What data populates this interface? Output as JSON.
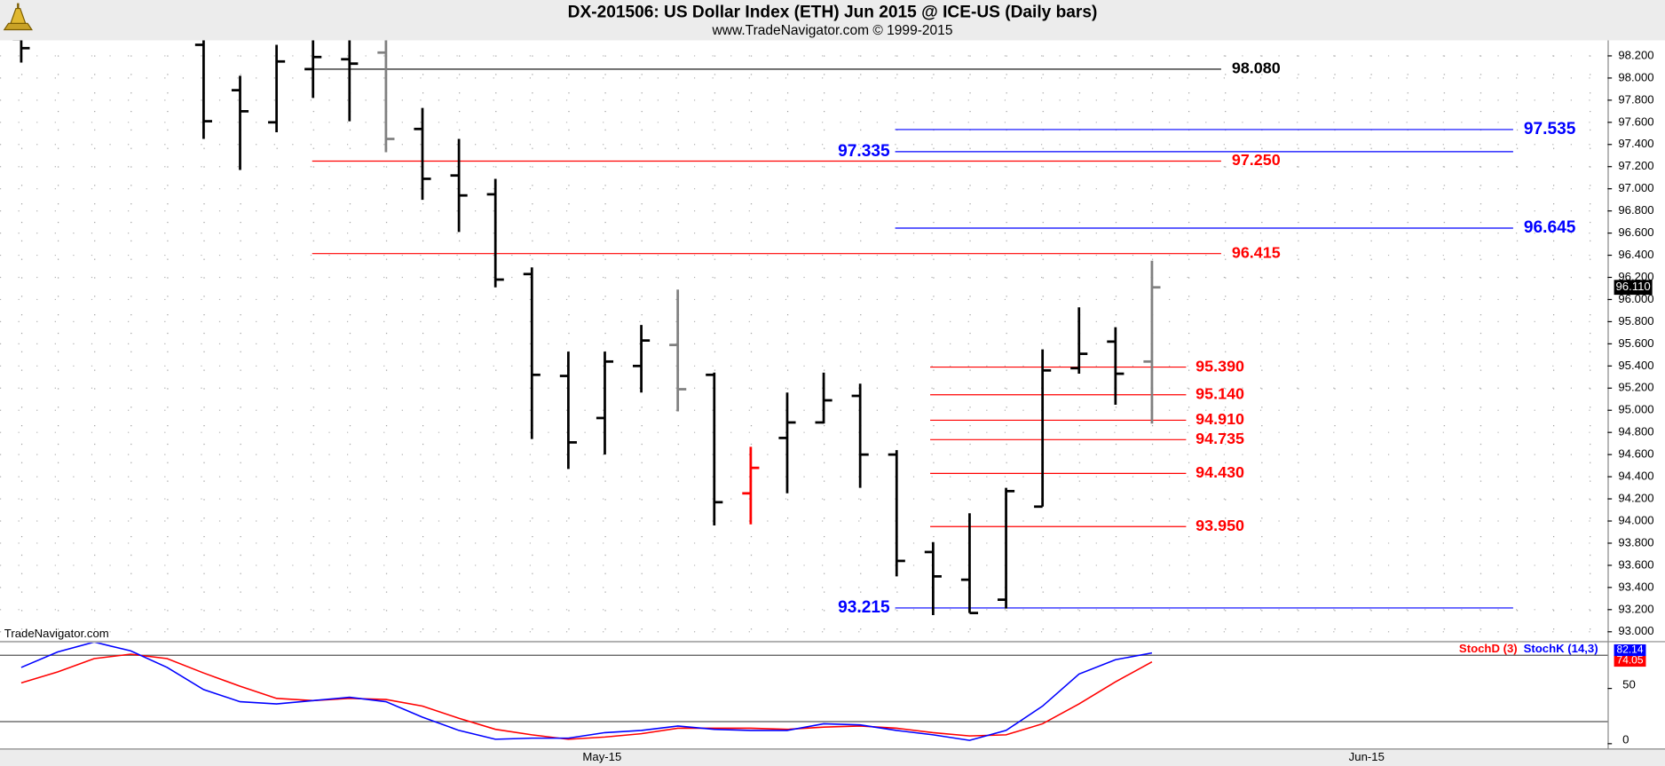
{
  "chart_data": [
    {
      "type": "ohlc",
      "title": "DX-201506:  US Dollar Index (ETH) Jun 2015 @ ICE-US  (Daily bars)",
      "subtitle": "www.TradeNavigator.com © 1999-2015",
      "annotation": "TradeNavigator.com",
      "open": [
        98.35,
        null,
        null,
        null,
        null,
        98.3,
        97.89,
        97.6,
        98.08,
        98.17,
        98.23,
        97.54,
        97.12,
        96.95,
        96.23,
        95.31,
        94.93,
        95.4,
        95.59,
        95.32,
        94.25,
        94.75,
        94.89,
        95.13,
        94.6,
        93.72,
        93.47,
        93.29,
        94.13,
        95.38,
        95.62,
        95.44
      ],
      "high": [
        98.4,
        null,
        null,
        null,
        null,
        98.36,
        98.02,
        98.3,
        98.34,
        98.34,
        98.34,
        97.73,
        97.45,
        97.09,
        96.29,
        95.53,
        95.53,
        95.77,
        96.09,
        95.34,
        94.67,
        95.16,
        95.34,
        95.24,
        94.64,
        93.81,
        94.07,
        94.3,
        95.55,
        95.93,
        95.75,
        96.35
      ],
      "low": [
        98.14,
        null,
        null,
        null,
        null,
        97.45,
        97.17,
        97.51,
        97.82,
        97.61,
        97.33,
        96.9,
        96.61,
        96.11,
        94.74,
        94.47,
        94.6,
        95.16,
        94.99,
        93.96,
        93.97,
        94.25,
        94.88,
        94.3,
        93.5,
        93.15,
        93.17,
        93.21,
        94.13,
        95.33,
        95.05,
        94.88
      ],
      "close": [
        98.27,
        null,
        null,
        null,
        null,
        97.61,
        97.7,
        98.15,
        98.19,
        98.13,
        97.45,
        97.09,
        96.94,
        96.18,
        95.32,
        94.71,
        95.44,
        95.63,
        95.19,
        94.17,
        94.48,
        94.89,
        95.09,
        94.6,
        93.64,
        93.5,
        93.17,
        94.27,
        95.36,
        95.51,
        95.33,
        96.11
      ],
      "colors": [
        "#000000",
        null,
        null,
        null,
        null,
        "#000000",
        "#000000",
        "#000000",
        "#000000",
        "#000000",
        "#808080",
        "#000000",
        "#000000",
        "#000000",
        "#000000",
        "#000000",
        "#000000",
        "#000000",
        "#808080",
        "#000000",
        "#ff0000",
        "#000000",
        "#000000",
        "#000000",
        "#000000",
        "#000000",
        "#000000",
        "#000000",
        "#000000",
        "#000000",
        "#000000",
        "#808080"
      ],
      "ylim": [
        92.92,
        98.34
      ],
      "yticks": [
        {
          "value": 93.0,
          "label": "93.000"
        },
        {
          "value": 93.2,
          "label": "93.200"
        },
        {
          "value": 93.4,
          "label": "93.400"
        },
        {
          "value": 93.6,
          "label": "93.600"
        },
        {
          "value": 93.8,
          "label": "93.800"
        },
        {
          "value": 94.0,
          "label": "94.000"
        },
        {
          "value": 94.2,
          "label": "94.200"
        },
        {
          "value": 94.4,
          "label": "94.400"
        },
        {
          "value": 94.6,
          "label": "94.600"
        },
        {
          "value": 94.8,
          "label": "94.800"
        },
        {
          "value": 95.0,
          "label": "95.000"
        },
        {
          "value": 95.2,
          "label": "95.200"
        },
        {
          "value": 95.4,
          "label": "95.400"
        },
        {
          "value": 95.6,
          "label": "95.600"
        },
        {
          "value": 95.8,
          "label": "95.800"
        },
        {
          "value": 96.0,
          "label": "96.000"
        },
        {
          "value": 96.2,
          "label": "96.200"
        },
        {
          "value": 96.4,
          "label": "96.400"
        },
        {
          "value": 96.6,
          "label": "96.600"
        },
        {
          "value": 96.8,
          "label": "96.800"
        },
        {
          "value": 97.0,
          "label": "97.000"
        },
        {
          "value": 97.2,
          "label": "97.200"
        },
        {
          "value": 97.4,
          "label": "97.400"
        },
        {
          "value": 97.6,
          "label": "97.600"
        },
        {
          "value": 97.8,
          "label": "97.800"
        },
        {
          "value": 98.0,
          "label": "98.000"
        },
        {
          "value": 98.2,
          "label": "98.200"
        }
      ],
      "grid": true,
      "levels": [
        {
          "value": 98.08,
          "label": "98.080",
          "color": "#000000"
        },
        {
          "value": 97.535,
          "label": "97.535",
          "color": "#0000ff"
        },
        {
          "value": 97.335,
          "label": "97.335",
          "color": "#0000ff"
        },
        {
          "value": 97.25,
          "label": "97.250",
          "color": "#ff0000"
        },
        {
          "value": 96.645,
          "label": "96.645",
          "color": "#0000ff"
        },
        {
          "value": 96.415,
          "label": "96.415",
          "color": "#ff0000"
        },
        {
          "value": 95.39,
          "label": "95.390",
          "color": "#ff0000"
        },
        {
          "value": 95.14,
          "label": "95.140",
          "color": "#ff0000"
        },
        {
          "value": 94.91,
          "label": "94.910",
          "color": "#ff0000"
        },
        {
          "value": 94.735,
          "label": "94.735",
          "color": "#ff0000"
        },
        {
          "value": 94.43,
          "label": "94.430",
          "color": "#ff0000"
        },
        {
          "value": 93.95,
          "label": "93.950",
          "color": "#ff0000"
        },
        {
          "value": 93.215,
          "label": "93.215",
          "color": "#0000ff"
        }
      ],
      "last_price": {
        "value": 96.11,
        "label": "96.110"
      }
    },
    {
      "type": "line",
      "series": [
        {
          "name": "StochD (3)",
          "color": "#ff0000",
          "values": [
            55,
            65,
            77,
            81,
            77,
            64,
            52,
            41,
            39,
            41,
            40,
            34,
            23,
            13,
            8,
            4,
            6,
            9,
            14,
            14,
            14,
            13,
            15,
            16,
            14,
            10,
            7,
            8,
            18,
            36,
            56,
            74.05
          ]
        },
        {
          "name": "StochK (14,3)",
          "color": "#0000ff",
          "values": [
            69,
            83,
            92,
            84,
            69,
            49,
            38,
            36,
            39,
            42,
            38,
            24,
            12,
            4,
            5,
            5,
            10,
            12,
            16,
            13,
            12,
            12,
            18,
            17,
            12,
            8,
            3,
            12,
            34,
            63,
            76,
            82.14
          ]
        }
      ],
      "ylim": [
        0,
        100
      ],
      "yticks": [
        0,
        50
      ],
      "levels": [
        20,
        80
      ],
      "x_labels": [
        "May-15",
        "Jun-15"
      ]
    }
  ]
}
